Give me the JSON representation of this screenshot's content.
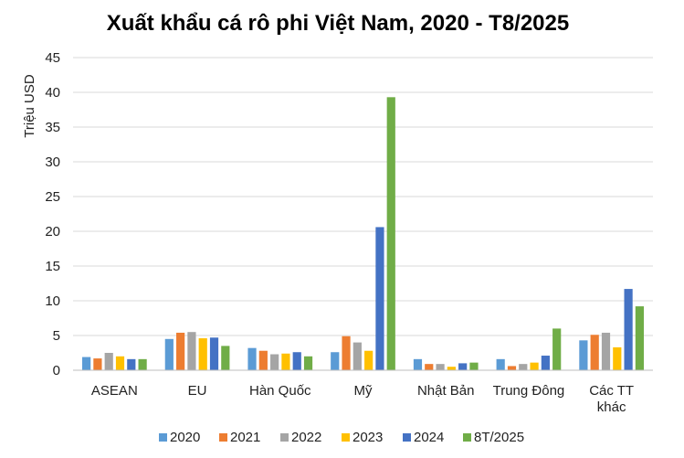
{
  "chart_data": {
    "type": "bar",
    "title": "Xuất khẩu cá rô phi Việt Nam, 2020 - T8/2025",
    "xlabel": "",
    "ylabel": "Triệu USD",
    "ylim": [
      0,
      45
    ],
    "yticks": [
      0,
      5,
      10,
      15,
      20,
      25,
      30,
      35,
      40,
      45
    ],
    "grid": true,
    "legend_position": "bottom",
    "categories": [
      [
        "ASEAN"
      ],
      [
        "EU"
      ],
      [
        "Hàn Quốc"
      ],
      [
        "Mỹ"
      ],
      [
        "Nhật Bản"
      ],
      [
        "Trung Đông"
      ],
      [
        "Các TT",
        "khác"
      ]
    ],
    "series": [
      {
        "name": "2020",
        "color": "#5B9BD5",
        "values": [
          1.9,
          4.5,
          3.2,
          2.6,
          1.6,
          1.6,
          4.3
        ]
      },
      {
        "name": "2021",
        "color": "#ED7D31",
        "values": [
          1.7,
          5.4,
          2.8,
          4.9,
          0.9,
          0.6,
          5.1
        ]
      },
      {
        "name": "2022",
        "color": "#A5A5A5",
        "values": [
          2.5,
          5.5,
          2.3,
          4.0,
          0.9,
          0.9,
          5.4
        ]
      },
      {
        "name": "2023",
        "color": "#FFC000",
        "values": [
          2.0,
          4.6,
          2.4,
          2.8,
          0.5,
          1.1,
          3.3
        ]
      },
      {
        "name": "2024",
        "color": "#4472C4",
        "values": [
          1.6,
          4.7,
          2.6,
          20.6,
          1.0,
          2.1,
          11.7
        ]
      },
      {
        "name": "8T/2025",
        "color": "#70AD47",
        "values": [
          1.6,
          3.5,
          2.0,
          39.3,
          1.1,
          6.0,
          9.2
        ]
      }
    ]
  }
}
